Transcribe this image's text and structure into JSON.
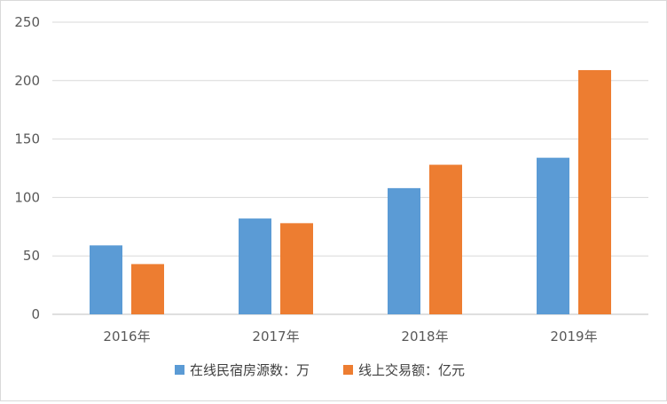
{
  "chart_data": {
    "type": "bar",
    "categories": [
      "2016年",
      "2017年",
      "2018年",
      "2019年"
    ],
    "series": [
      {
        "name": "在线民宿房源数：万",
        "values": [
          59,
          82,
          108,
          134
        ],
        "color": "#5b9bd5"
      },
      {
        "name": "线上交易额：亿元",
        "values": [
          43,
          78,
          128,
          209
        ],
        "color": "#ed7d31"
      }
    ],
    "yticks": [
      "0",
      "50",
      "100",
      "150",
      "200",
      "250"
    ],
    "ylim": [
      0,
      250
    ],
    "grid": true,
    "legend_position": "bottom"
  }
}
